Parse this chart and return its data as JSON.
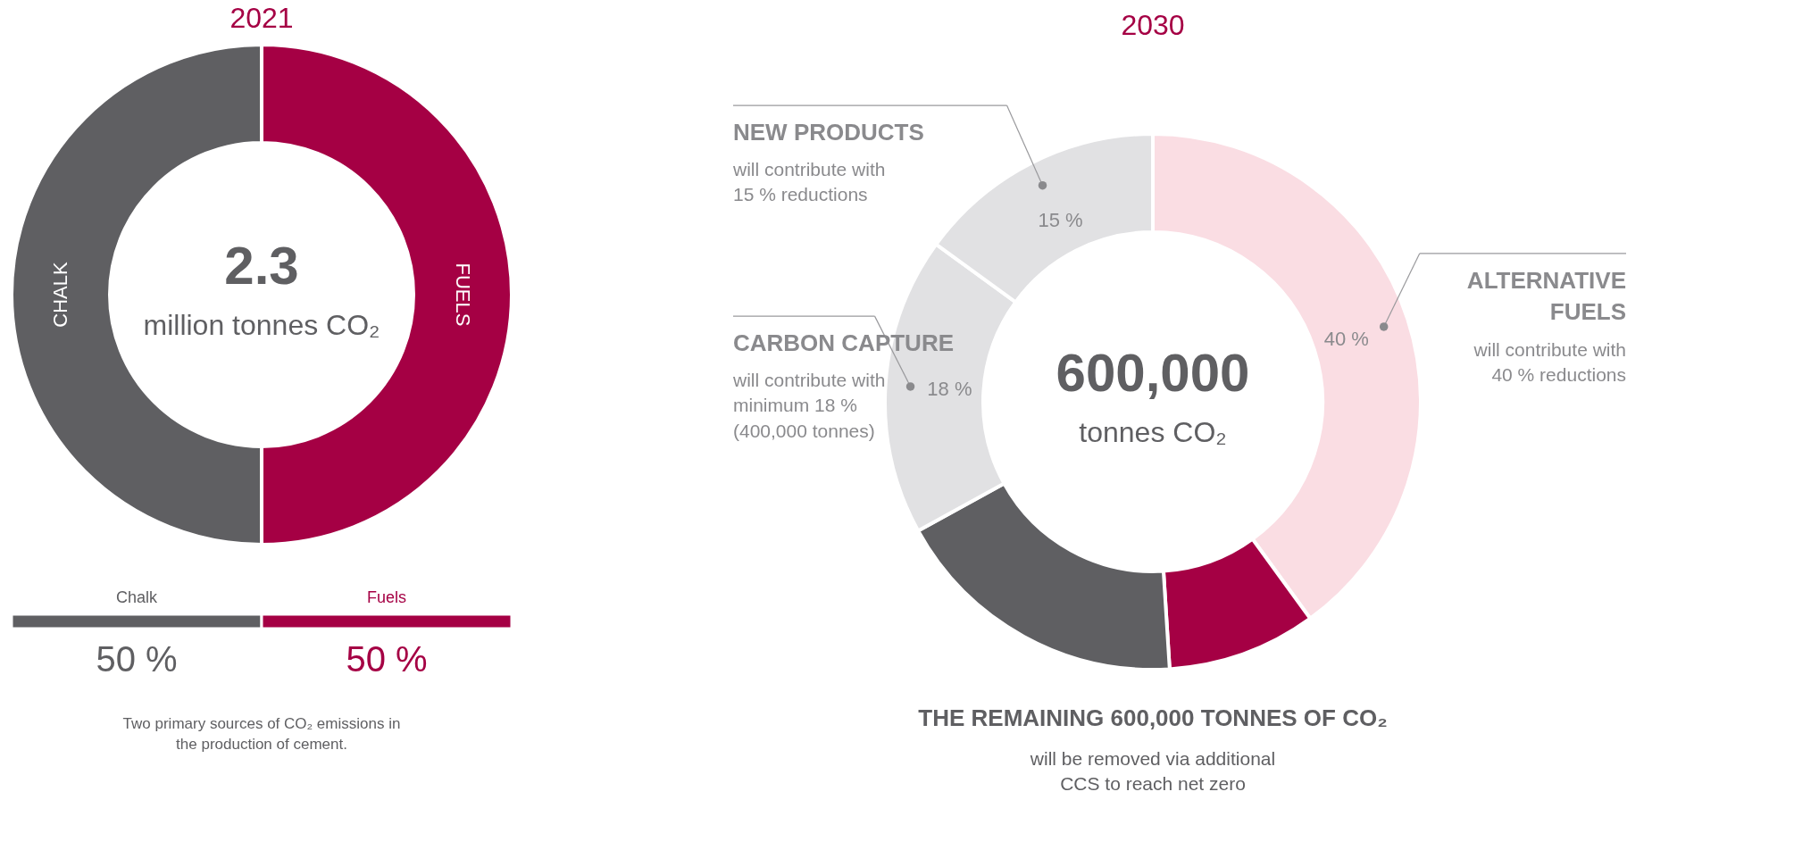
{
  "chart_data": [
    {
      "type": "donut",
      "title": "2021",
      "categories": [
        "FUELS",
        "CHALK"
      ],
      "values": [
        50,
        50
      ],
      "colors": [
        "#a50044",
        "#5f5f62"
      ],
      "annotations": [
        "2.3",
        "million tonnes CO₂"
      ]
    },
    {
      "type": "bar",
      "orientation": "horizontal",
      "stacked": true,
      "categories": [
        null
      ],
      "xlim": [
        0,
        100
      ],
      "tick_labels": false,
      "series": [
        {
          "name": "Chalk",
          "color": "#5f5f62",
          "values": [
            50
          ],
          "value_labels": [
            "50 %"
          ]
        },
        {
          "name": "Fuels",
          "color": "#a50044",
          "values": [
            50
          ],
          "value_labels": [
            "50 %"
          ]
        }
      ],
      "annotations": [
        "Two primary sources of CO₂ emissions in the production of cement."
      ]
    },
    {
      "type": "donut",
      "title": "2030",
      "categories": [
        "ALTERNATIVE FUELS",
        null,
        null,
        "CARBON CAPTURE",
        "NEW PRODUCTS"
      ],
      "values": [
        40,
        9,
        18,
        18,
        15
      ],
      "colors": [
        "#fadde3",
        "#a50044",
        "#5f5f62",
        "#e1e1e3",
        "#e1e1e3"
      ],
      "value_labels": [
        "40 %",
        null,
        null,
        "18 %",
        "15 %"
      ],
      "annotations": [
        "600,000",
        "tonnes CO₂",
        "will contribute with 40 % reductions",
        "will contribute with minimum 18 % (400,000 tonnes)",
        "will contribute with 15 % reductions",
        "THE REMAINING 600,000 TONNES OF CO₂",
        "will be removed via additional CCS to reach net zero"
      ]
    }
  ]
}
